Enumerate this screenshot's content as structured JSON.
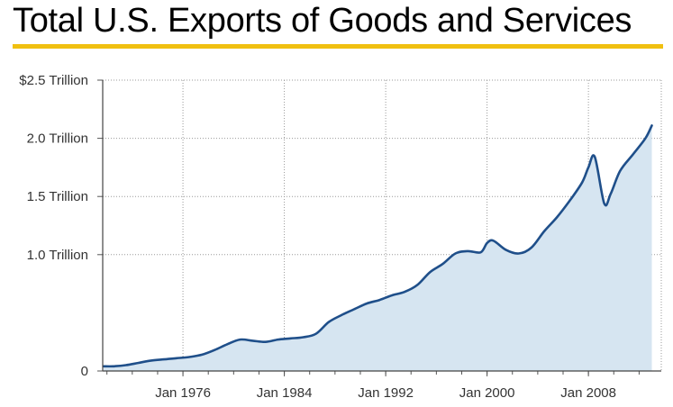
{
  "title": "Total U.S. Exports of Goods and Services",
  "colors": {
    "accent_rule": "#f0c010",
    "line": "#1f4f8a",
    "area": "#d6e5f1",
    "grid": "#999999"
  },
  "chart_data": {
    "type": "area",
    "title": "Total U.S. Exports of Goods and Services",
    "xlabel": "",
    "ylabel": "",
    "x_tick_labels": [
      "Jan 1976",
      "Jan 1984",
      "Jan 1992",
      "Jan 2000",
      "Jan 2008"
    ],
    "y_tick_labels": [
      "0",
      "1.0 Trillion",
      "1.5 Trillion",
      "2.0 Trillion",
      "$2.5 Trillion"
    ],
    "y_tick_values": [
      0,
      1.0,
      1.5,
      2.0,
      2.5
    ],
    "xlim": [
      "1969-09",
      "2013-10"
    ],
    "ylim": [
      0,
      2.5
    ],
    "grid": true,
    "unit": "trillion dollars",
    "series": [
      {
        "x": [
          "1969-10",
          "1970-07",
          "1971-07",
          "1972-07",
          "1973-07",
          "1974-07",
          "1975-07",
          "1976-07",
          "1977-07",
          "1978-07",
          "1979-07",
          "1980-07",
          "1981-07",
          "1982-07",
          "1983-07",
          "1984-07",
          "1985-07",
          "1986-07",
          "1987-07",
          "1988-07",
          "1989-07",
          "1990-07",
          "1991-07",
          "1992-07",
          "1993-07",
          "1994-07",
          "1995-07",
          "1996-07",
          "1997-07",
          "1998-07",
          "1999-07",
          "2000-01",
          "2000-07",
          "2001-07",
          "2002-07",
          "2003-07",
          "2004-07",
          "2005-07",
          "2006-07",
          "2007-07",
          "2008-01",
          "2008-07",
          "2009-04",
          "2009-10",
          "2010-07",
          "2011-07",
          "2012-07",
          "2013-01"
        ],
        "values": [
          0.04,
          0.04,
          0.05,
          0.07,
          0.09,
          0.1,
          0.11,
          0.12,
          0.14,
          0.18,
          0.23,
          0.27,
          0.26,
          0.25,
          0.27,
          0.28,
          0.29,
          0.32,
          0.42,
          0.48,
          0.53,
          0.58,
          0.61,
          0.65,
          0.68,
          0.74,
          0.85,
          0.92,
          1.01,
          1.03,
          1.02,
          1.1,
          1.12,
          1.04,
          1.01,
          1.06,
          1.2,
          1.32,
          1.46,
          1.62,
          1.75,
          1.84,
          1.44,
          1.52,
          1.72,
          1.86,
          2.0,
          2.11
        ]
      }
    ]
  }
}
